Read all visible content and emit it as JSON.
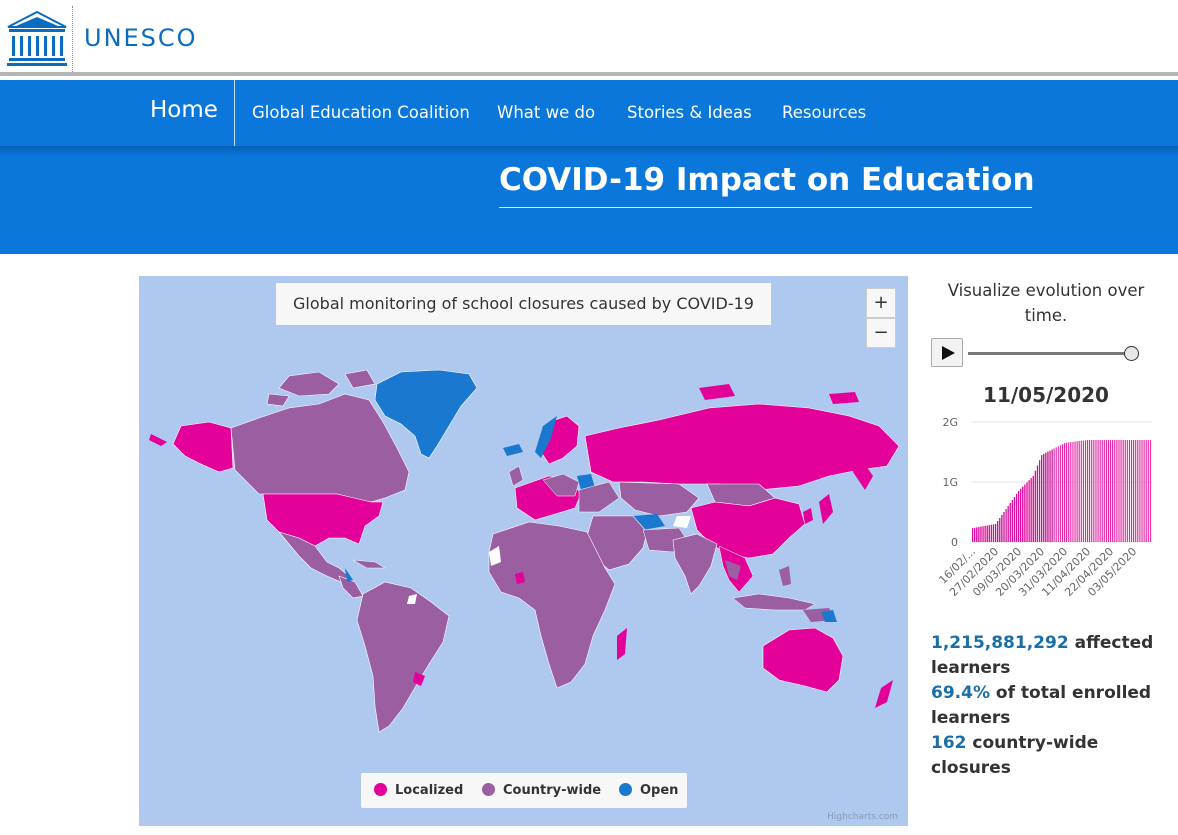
{
  "brand": {
    "name": "UNESCO",
    "logo_text": "UNESCO"
  },
  "nav": {
    "home": "Home",
    "items": [
      "Global Education Coalition",
      "What we do",
      "Stories & Ideas",
      "Resources"
    ]
  },
  "hero": {
    "title": "COVID-19 Impact on Education"
  },
  "map": {
    "title": "Global monitoring of school closures caused by COVID-19",
    "zoom_in": "+",
    "zoom_out": "−",
    "legend": [
      {
        "label": "Localized",
        "color": "#e4019a"
      },
      {
        "label": "Country-wide",
        "color": "#9a5ea1"
      },
      {
        "label": "Open",
        "color": "#1b78cf"
      }
    ],
    "credits": "Highcharts.com",
    "ocean_color": "#aec8f0"
  },
  "sidebar": {
    "heading": "Visualize evolution over time.",
    "play_icon": "play-icon",
    "slider_position": 1.0,
    "current_date": "11/05/2020",
    "stats": {
      "affected_value": "1,215,881,292",
      "affected_label": "affected learners",
      "percent_value": "69.4%",
      "percent_label": "of total enrolled learners",
      "closures_value": "162",
      "closures_label": "country-wide closures"
    }
  },
  "chart_data": {
    "type": "bar",
    "title": "",
    "xlabel": "",
    "ylabel": "",
    "y_ticks": [
      "0",
      "1G",
      "2G"
    ],
    "ylim": [
      0,
      2000000000
    ],
    "x_tick_labels": [
      "16/02/...",
      "27/02/2020",
      "09/03/2020",
      "20/03/2020",
      "31/03/2020",
      "11/04/2020",
      "22/04/2020",
      "03/05/2020"
    ],
    "x_tick_start_days": [
      0,
      11,
      22,
      33,
      44,
      55,
      66,
      77
    ],
    "series": [
      {
        "name": "",
        "color": "#e4019a"
      },
      {
        "name": "",
        "color": "#9a5ea1"
      }
    ],
    "start": "16/02/2020",
    "end": "11/05/2020",
    "values_localized_pct_of_max": "stepped rise to approx 1.7G by early April then plateau",
    "key_points": [
      {
        "x": "16/02/2020",
        "y": 230000000
      },
      {
        "x": "27/02/2020",
        "y": 300000000
      },
      {
        "x": "09/03/2020",
        "y": 850000000
      },
      {
        "x": "16/03/2020",
        "y": 1100000000
      },
      {
        "x": "20/03/2020",
        "y": 1450000000
      },
      {
        "x": "31/03/2020",
        "y": 1650000000
      },
      {
        "x": "11/04/2020",
        "y": 1700000000
      },
      {
        "x": "22/04/2020",
        "y": 1700000000
      },
      {
        "x": "03/05/2020",
        "y": 1700000000
      },
      {
        "x": "11/05/2020",
        "y": 1700000000
      }
    ]
  }
}
